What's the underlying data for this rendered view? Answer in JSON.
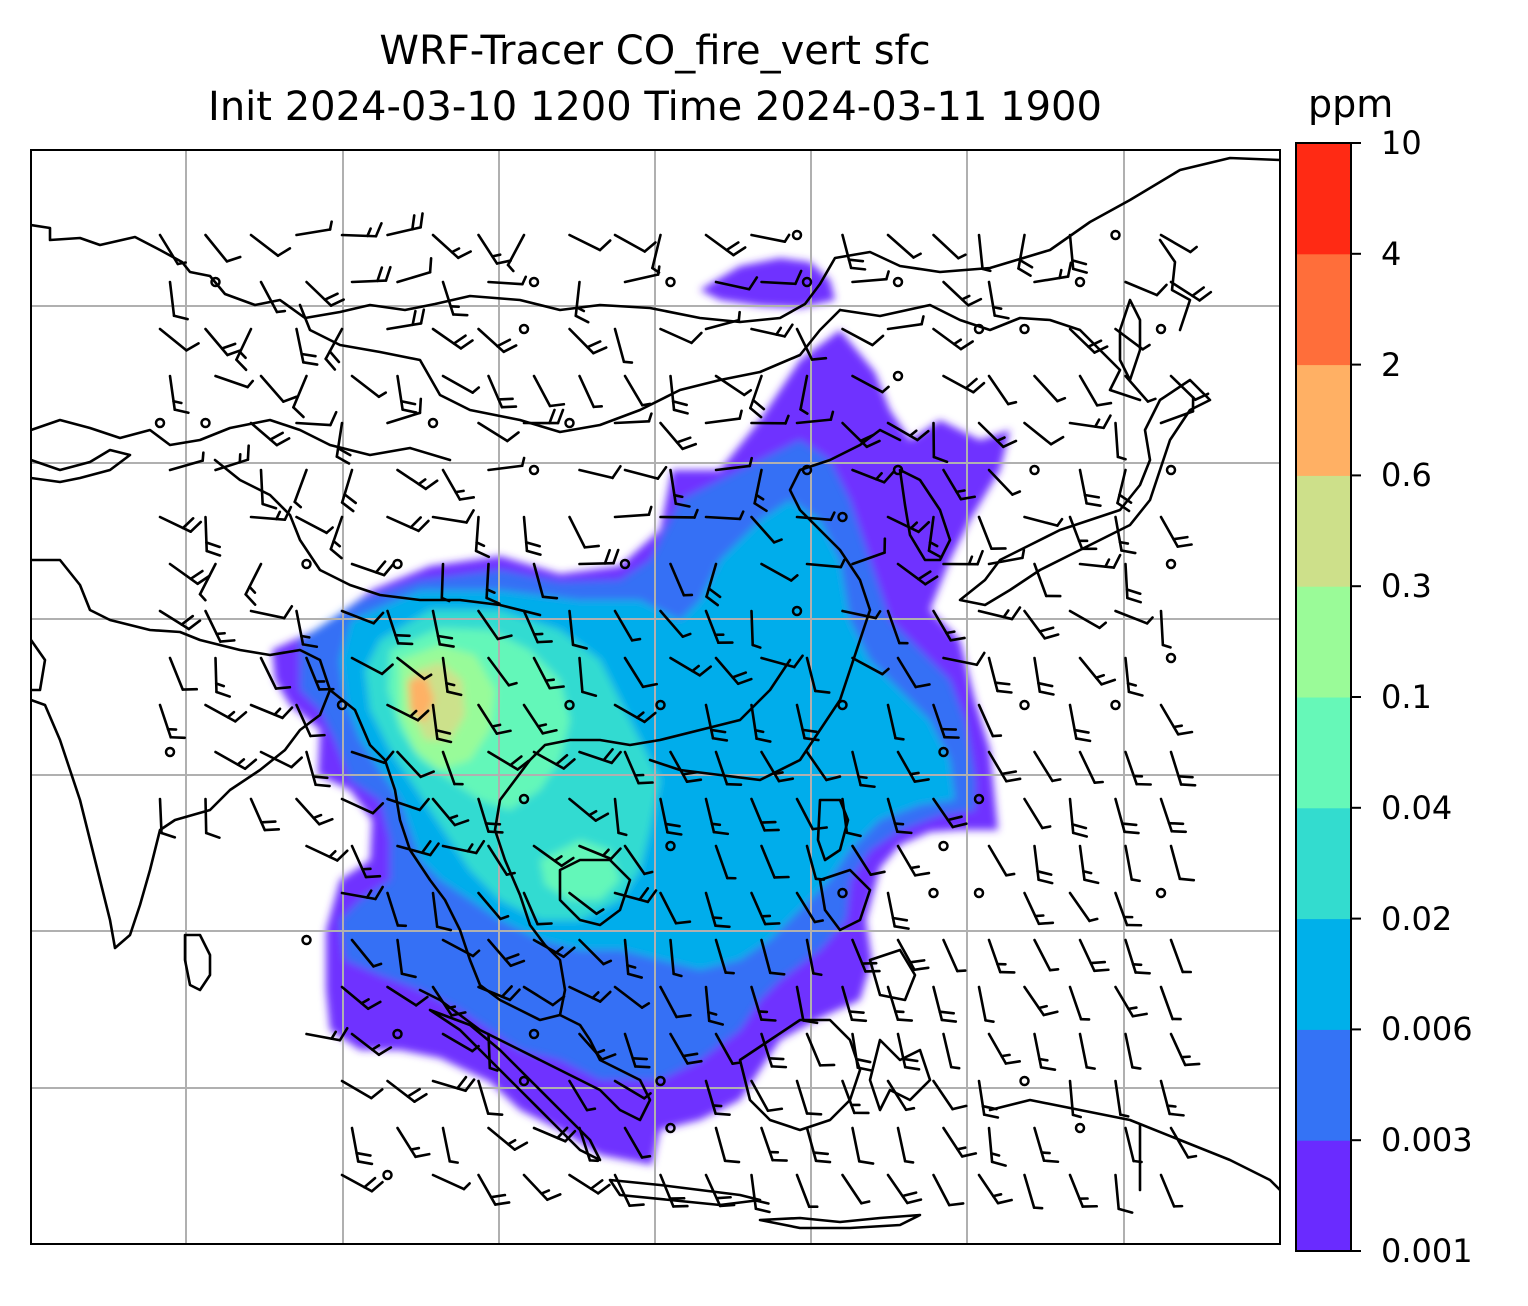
{
  "title": {
    "line1": "WRF-Tracer CO_fire_vert sfc",
    "line2": "Init 2024-03-10 1200 Time 2024-03-11 1900"
  },
  "colorbar": {
    "unit": "ppm",
    "ticks": [
      "0.001",
      "0.003",
      "0.006",
      "0.02",
      "0.04",
      "0.1",
      "0.3",
      "0.6",
      "2",
      "4",
      "10"
    ],
    "colors": [
      "#6a2bff",
      "#3473f5",
      "#00b0ea",
      "#33dccf",
      "#66f8b8",
      "#9afb98",
      "#cde08a",
      "#ffb064",
      "#ff6e3a",
      "#ff2a14"
    ]
  },
  "colors": {
    "coastline": "#000000",
    "grid": "#b0b0b0"
  }
}
